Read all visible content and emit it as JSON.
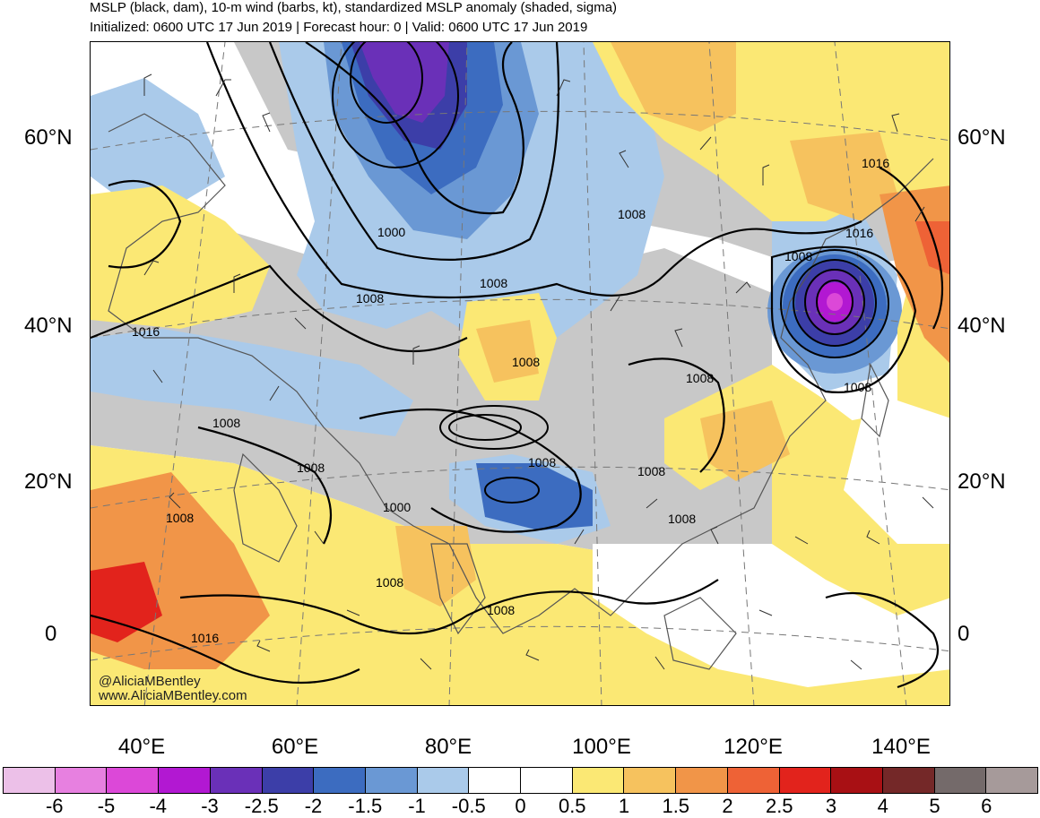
{
  "title": "MSLP (black, dam), 10-m wind (barbs, kt), standardized MSLP anomaly (shaded, sigma)",
  "subtitle": "Initialized: 0600 UTC 17 Jun 2019 | Forecast hour: 0 | Valid: 0600 UTC 17 Jun 2019",
  "lat_labels": [
    "60°N",
    "40°N",
    "20°N",
    "0"
  ],
  "lon_labels": [
    "40°E",
    "60°E",
    "80°E",
    "100°E",
    "120°E",
    "140°E"
  ],
  "isobar_labels": [
    "1000",
    "1008",
    "1008",
    "1016",
    "1008",
    "1008",
    "1016",
    "1016",
    "1008",
    "1008",
    "1008",
    "1008",
    "1008",
    "1008",
    "1000",
    "1008",
    "1008",
    "1008",
    "1008",
    "1016",
    "1008"
  ],
  "credit": {
    "handle": "@AliciaMBentley",
    "url": "www.AliciaMBentley.com"
  },
  "colorbar": {
    "ticks": [
      "-6",
      "-5",
      "-4",
      "-3",
      "-2.5",
      "-2",
      "-1.5",
      "-1",
      "-0.5",
      "0",
      "0.5",
      "1",
      "1.5",
      "2",
      "2.5",
      "3",
      "4",
      "5",
      "6"
    ],
    "colors": [
      "#ecc0e8",
      "#e780e0",
      "#dc48d8",
      "#b218d2",
      "#6a30b8",
      "#3c3ea8",
      "#3c6cc0",
      "#6a98d4",
      "#aacaea",
      "#ffffff",
      "#ffffff",
      "#fbe874",
      "#f6c25e",
      "#f19548",
      "#ee6236",
      "#e2231c",
      "#a81014",
      "#742828",
      "#746a6a",
      "#a69a9a"
    ]
  },
  "colors": {
    "land_gray": "#c8c8c8",
    "coast": "#555555",
    "isobar": "#000000"
  }
}
